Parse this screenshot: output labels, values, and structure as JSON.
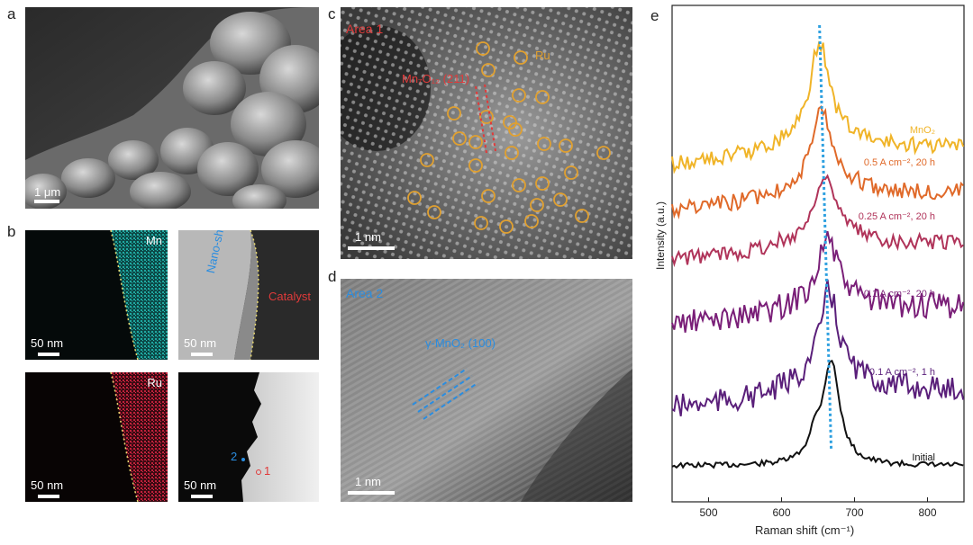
{
  "panels": {
    "a": {
      "label": "a",
      "scale": "1 μm"
    },
    "b": {
      "label": "b",
      "mn": {
        "title": "Mn",
        "scale": "50 nm"
      },
      "tem": {
        "nano": "Nano-shield",
        "catalyst": "Catalyst",
        "scale": "50 nm"
      },
      "ru": {
        "title": "Ru",
        "scale": "50 nm"
      },
      "haadf": {
        "p2": "2",
        "p1": "1",
        "scale": "50 nm"
      }
    },
    "c": {
      "label": "c",
      "area": "Area 1",
      "plane": "Mn₇O₁₂ (211)",
      "ru": "Ru",
      "scale": "1 nm"
    },
    "d": {
      "label": "d",
      "area": "Area 2",
      "plane": "γ-MnO₂ (100)",
      "scale": "1 nm"
    },
    "e": {
      "label": "e"
    }
  },
  "colors": {
    "mn": "#1fa8a0",
    "ru": "#c0203a",
    "area1": "#e03a3a",
    "area2": "#2a8de0",
    "ru_marker": "#e0a030",
    "fit": "#2ea0e0"
  },
  "chart_data": {
    "type": "line",
    "xlabel": "Raman shift (cm⁻¹)",
    "ylabel": "Intensity (a.u.)",
    "xlim": [
      450,
      850
    ],
    "xticks": [
      500,
      600,
      700,
      800
    ],
    "series": [
      {
        "name": "Initial",
        "peak": 668,
        "color": "#111111"
      },
      {
        "name": "0.1 A cm⁻², 1 h",
        "peak": 665,
        "color": "#5a1f7a"
      },
      {
        "name": "0.1 A cm⁻², 20 h",
        "peak": 663,
        "color": "#7a1f78"
      },
      {
        "name": "0.25 A cm⁻², 20 h",
        "peak": 660,
        "color": "#b0345a"
      },
      {
        "name": "0.5 A cm⁻², 20 h",
        "peak": 656,
        "color": "#e06a2a"
      },
      {
        "name": "MnO₂",
        "peak": 652,
        "color": "#f0b428"
      }
    ]
  }
}
